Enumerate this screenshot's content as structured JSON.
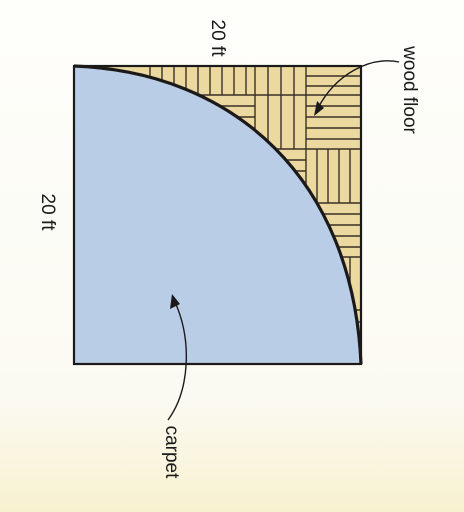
{
  "figure": {
    "top_side_label": "20 ft",
    "left_side_label": "20 ft",
    "wood_label": "wood floor",
    "carpet_label": "carpet"
  },
  "colors": {
    "carpet": "#b9cde6",
    "wood": "#ecd9a0",
    "wood_lines": "#3a3026",
    "outline": "#1c1a18"
  }
}
